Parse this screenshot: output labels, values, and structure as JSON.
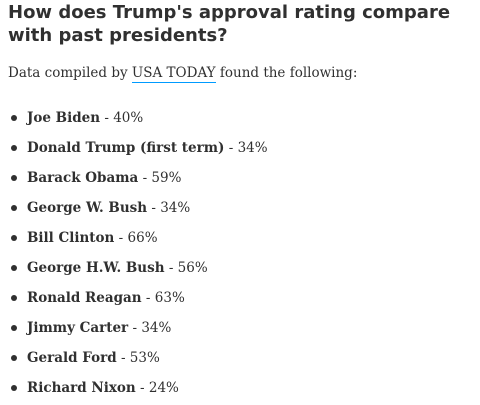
{
  "article": {
    "headline": "How does Trump's approval rating compare with past presidents?",
    "intro_before": "Data compiled by ",
    "intro_link": "USA TODAY",
    "intro_after": " found the following:",
    "presidents": [
      {
        "name": "Joe Biden",
        "rating": " - 40%"
      },
      {
        "name": "Donald Trump (first term)",
        "rating": " - 34%"
      },
      {
        "name": "Barack Obama",
        "rating": " - 59%"
      },
      {
        "name": "George W. Bush",
        "rating": " - 34%"
      },
      {
        "name": "Bill Clinton",
        "rating": " - 66%"
      },
      {
        "name": "George H.W. Bush",
        "rating": " - 56%"
      },
      {
        "name": "Ronald Reagan",
        "rating": " - 63%"
      },
      {
        "name": "Jimmy Carter",
        "rating": " - 34%"
      },
      {
        "name": "Gerald Ford",
        "rating": " - 53%"
      },
      {
        "name": "Richard Nixon",
        "rating": " - 24%"
      }
    ]
  },
  "colors": {
    "text": "#303030",
    "link_underline": "#009bff",
    "background": "#ffffff"
  }
}
